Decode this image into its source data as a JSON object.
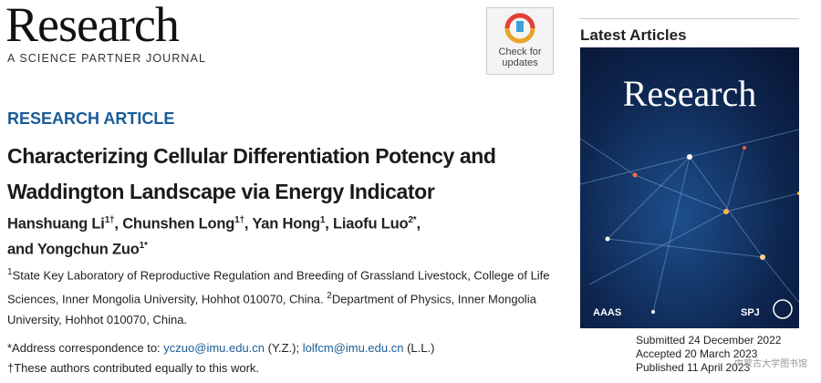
{
  "journal": {
    "name": "Research",
    "tagline": "A SCIENCE PARTNER JOURNAL"
  },
  "badge": {
    "text": "Check for updates"
  },
  "article": {
    "type": "RESEARCH ARTICLE",
    "title": "Characterizing Cellular Differentiation Potency and Waddington Landscape via Energy Indicator",
    "authors": [
      {
        "name": "Hanshuang Li",
        "sup": "1†",
        "after": ","
      },
      {
        "name": "Chunshen Long",
        "sup": "1†",
        "after": ","
      },
      {
        "name": "Yan Hong",
        "sup": "1",
        "after": ","
      },
      {
        "name": "Liaofu Luo",
        "sup": "2*",
        "after": ","
      },
      {
        "name": "and Yongchun Zuo",
        "sup": "1*",
        "after": ""
      }
    ],
    "affiliations": [
      {
        "sup": "1",
        "text": "State Key Laboratory of Reproductive Regulation and Breeding of Grassland Livestock, College of Life Sciences, Inner Mongolia University, Hohhot 010070, China."
      },
      {
        "sup": "2",
        "text": "Department of Physics, Inner Mongolia University, Hohhot 010070, China."
      }
    ],
    "correspondence": {
      "label": "*Address correspondence to:",
      "contacts": [
        {
          "email": "yczuo@imu.edu.cn",
          "initials": "(Y.Z.);"
        },
        {
          "email": "lolfcm@imu.edu.cn",
          "initials": "(L.L.)"
        }
      ]
    },
    "equal_contribution": "†These authors contributed equally to this work."
  },
  "sidebar": {
    "heading": "Latest Articles",
    "cover_title": "Research",
    "cover_logos": [
      "AAAS",
      "SPJ"
    ],
    "dates": [
      "Submitted 24 December 2022",
      "Accepted 20 March 2023",
      "Published 11 April 2023"
    ]
  },
  "watermark": "内蒙古大学图书馆"
}
